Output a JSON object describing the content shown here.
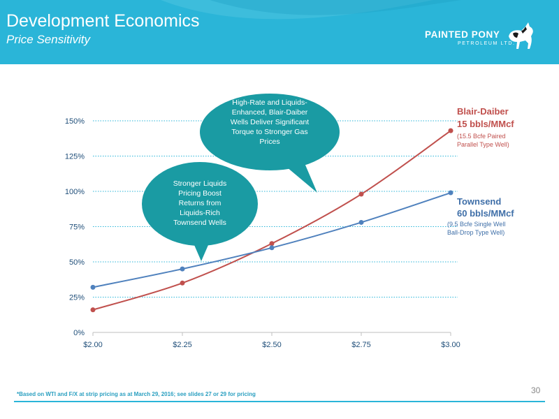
{
  "header": {
    "title": "Development Economics",
    "subtitle": "Price Sensitivity",
    "logo_name": "PAINTED PONY",
    "logo_sub": "PETROLEUM LTD."
  },
  "colors": {
    "header_bg": "#2ab5d8",
    "blair": "#c0504d",
    "townsend": "#4f81bd",
    "bubble": "#1a9ba3",
    "grid": "#2ab5d8"
  },
  "chart_data": {
    "type": "line",
    "x": [
      "$2.00",
      "$2.25",
      "$2.50",
      "$2.75",
      "$3.00"
    ],
    "y_ticks": [
      "0%",
      "25%",
      "50%",
      "75%",
      "100%",
      "125%",
      "150%"
    ],
    "ylim": [
      0,
      150
    ],
    "series": [
      {
        "name": "Blair-Daiber",
        "values": [
          16,
          35,
          63,
          98,
          143
        ]
      },
      {
        "name": "Townsend",
        "values": [
          32,
          45,
          60,
          78,
          99
        ]
      }
    ],
    "grid": "dotted-horizontal"
  },
  "legend": {
    "blair": {
      "name": "Blair-Daiber",
      "rate": "15 bbls/MMcf",
      "desc1": "(15.5 Bcfe Paired",
      "desc2": "Parallel Type Well)"
    },
    "townsend": {
      "name": "Townsend",
      "rate": "60 bbls/MMcf",
      "desc1": "(9.5 Bcfe Single Well",
      "desc2": "Ball-Drop Type Well)"
    }
  },
  "callouts": {
    "high_rate": [
      "High-Rate and Liquids-",
      "Enhanced, Blair-Daiber",
      "Wells Deliver Significant",
      "Torque to Stronger Gas",
      "Prices"
    ],
    "liquids": [
      "Stronger Liquids",
      "Pricing Boost",
      "Returns from",
      "Liquids-Rich",
      "Townsend Wells"
    ]
  },
  "footer": {
    "note": "*Based on WTI and F/X at strip pricing as at March 29, 2016; see slides 27 or 29 for pricing",
    "page": "30"
  }
}
